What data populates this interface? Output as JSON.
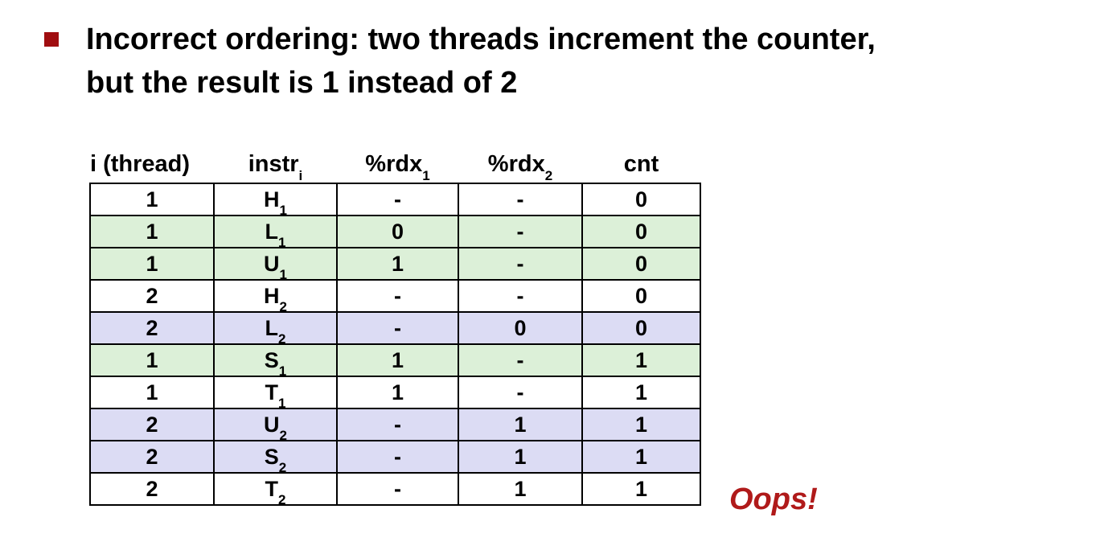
{
  "slide": {
    "headline_lines": [
      "Incorrect ordering: two threads increment the counter,",
      "but the result is 1 instead of 2"
    ],
    "annotation": "Oops!",
    "colors": {
      "bullet": "#a00d10",
      "annotation": "#b01a1a",
      "thread1_row": "#dcf0d8",
      "thread2_row": "#dcdcf4"
    }
  },
  "table": {
    "headers": [
      {
        "text": "i (thread)",
        "sub": ""
      },
      {
        "text": "instr",
        "sub": "i"
      },
      {
        "text": "%rdx",
        "sub": "1"
      },
      {
        "text": "%rdx",
        "sub": "2"
      },
      {
        "text": "cnt",
        "sub": ""
      }
    ],
    "rows": [
      {
        "shade": "w",
        "thread": "1",
        "instr": "H",
        "instr_sub": "1",
        "rdx1": "-",
        "rdx2": "-",
        "cnt": "0"
      },
      {
        "shade": "g",
        "thread": "1",
        "instr": "L",
        "instr_sub": "1",
        "rdx1": "0",
        "rdx2": "-",
        "cnt": "0"
      },
      {
        "shade": "g",
        "thread": "1",
        "instr": "U",
        "instr_sub": "1",
        "rdx1": "1",
        "rdx2": "-",
        "cnt": "0"
      },
      {
        "shade": "w",
        "thread": "2",
        "instr": "H",
        "instr_sub": "2",
        "rdx1": "-",
        "rdx2": "-",
        "cnt": "0"
      },
      {
        "shade": "b",
        "thread": "2",
        "instr": "L",
        "instr_sub": "2",
        "rdx1": "-",
        "rdx2": "0",
        "cnt": "0"
      },
      {
        "shade": "g",
        "thread": "1",
        "instr": "S",
        "instr_sub": "1",
        "rdx1": "1",
        "rdx2": "-",
        "cnt": "1"
      },
      {
        "shade": "w",
        "thread": "1",
        "instr": "T",
        "instr_sub": "1",
        "rdx1": "1",
        "rdx2": "-",
        "cnt": "1"
      },
      {
        "shade": "b",
        "thread": "2",
        "instr": "U",
        "instr_sub": "2",
        "rdx1": "-",
        "rdx2": "1",
        "cnt": "1"
      },
      {
        "shade": "b",
        "thread": "2",
        "instr": "S",
        "instr_sub": "2",
        "rdx1": "-",
        "rdx2": "1",
        "cnt": "1"
      },
      {
        "shade": "w",
        "thread": "2",
        "instr": "T",
        "instr_sub": "2",
        "rdx1": "-",
        "rdx2": "1",
        "cnt": "1"
      }
    ]
  }
}
